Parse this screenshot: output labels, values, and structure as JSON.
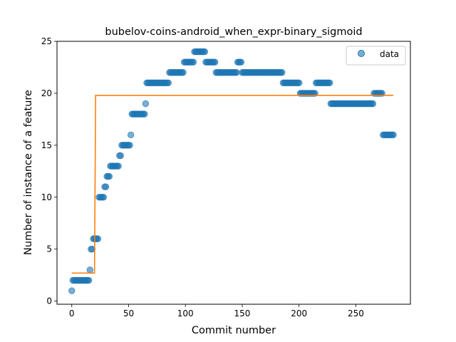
{
  "chart_data": {
    "type": "scatter",
    "title": "bubelov-coins-android_when_expr-binary_sigmoid",
    "xlabel": "Commit number",
    "ylabel": "Number of instance of a feature",
    "xlim": [
      -13,
      298
    ],
    "ylim": [
      -0.3,
      25
    ],
    "xticks": [
      0,
      50,
      100,
      150,
      200,
      250
    ],
    "yticks": [
      0,
      5,
      10,
      15,
      20,
      25
    ],
    "grid": false,
    "legend_position": "top-right",
    "series": [
      {
        "name": "data",
        "kind": "scatter",
        "color": "#1f77b4",
        "segments": [
          {
            "x_from": 0,
            "x_to": 0,
            "y": 1
          },
          {
            "x_from": 1,
            "x_to": 15,
            "y": 2
          },
          {
            "x_from": 16,
            "x_to": 16,
            "y": 3
          },
          {
            "x_from": 17,
            "x_to": 18,
            "y": 5
          },
          {
            "x_from": 19,
            "x_to": 23,
            "y": 6
          },
          {
            "x_from": 24,
            "x_to": 28,
            "y": 10
          },
          {
            "x_from": 29,
            "x_to": 30,
            "y": 11
          },
          {
            "x_from": 31,
            "x_to": 33,
            "y": 12
          },
          {
            "x_from": 34,
            "x_to": 41,
            "y": 13
          },
          {
            "x_from": 42,
            "x_to": 43,
            "y": 14
          },
          {
            "x_from": 44,
            "x_to": 51,
            "y": 15
          },
          {
            "x_from": 52,
            "x_to": 52,
            "y": 16
          },
          {
            "x_from": 53,
            "x_to": 64,
            "y": 18
          },
          {
            "x_from": 65,
            "x_to": 65,
            "y": 19
          },
          {
            "x_from": 66,
            "x_to": 85,
            "y": 21
          },
          {
            "x_from": 86,
            "x_to": 98,
            "y": 22
          },
          {
            "x_from": 99,
            "x_to": 107,
            "y": 23
          },
          {
            "x_from": 108,
            "x_to": 117,
            "y": 24
          },
          {
            "x_from": 118,
            "x_to": 126,
            "y": 23
          },
          {
            "x_from": 127,
            "x_to": 145,
            "y": 22
          },
          {
            "x_from": 146,
            "x_to": 149,
            "y": 23
          },
          {
            "x_from": 150,
            "x_to": 185,
            "y": 22
          },
          {
            "x_from": 186,
            "x_to": 200,
            "y": 21
          },
          {
            "x_from": 201,
            "x_to": 214,
            "y": 20
          },
          {
            "x_from": 215,
            "x_to": 227,
            "y": 21
          },
          {
            "x_from": 228,
            "x_to": 265,
            "y": 19
          },
          {
            "x_from": 266,
            "x_to": 273,
            "y": 20
          },
          {
            "x_from": 274,
            "x_to": 283,
            "y": 16
          }
        ]
      },
      {
        "name": "",
        "kind": "line",
        "color": "#ff7f0e",
        "points": [
          [
            0,
            2.7
          ],
          [
            20,
            2.7
          ],
          [
            21,
            19.8
          ],
          [
            283,
            19.8
          ]
        ]
      }
    ]
  }
}
